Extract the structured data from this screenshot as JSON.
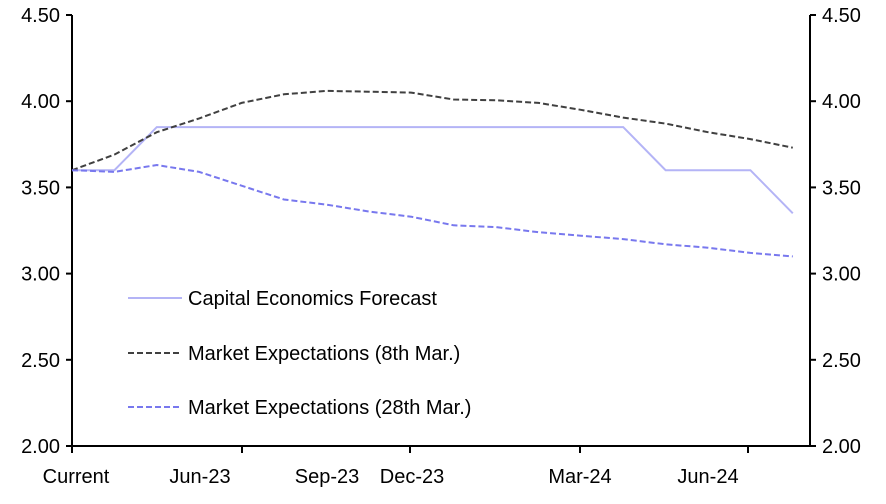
{
  "chart_data": {
    "type": "line",
    "title": "",
    "xlabel": "",
    "ylabel": "",
    "ylim": [
      2.0,
      4.5
    ],
    "y_ticks": [
      "2.00",
      "2.50",
      "3.00",
      "3.50",
      "4.00",
      "4.50"
    ],
    "y_tick_values": [
      2.0,
      2.5,
      3.0,
      3.5,
      4.0,
      4.5
    ],
    "x_tick_labels": [
      "Current",
      "Jun-23",
      "Sep-23",
      "Dec-23",
      "Mar-24",
      "Jun-24"
    ],
    "x_points": 18,
    "grid": false,
    "legend_position": "lower-left",
    "series": [
      {
        "name": "Capital Economics Forecast",
        "color": "#b4b4f6",
        "style": "solid",
        "values": [
          3.6,
          3.6,
          3.85,
          3.85,
          3.85,
          3.85,
          3.85,
          3.85,
          3.85,
          3.85,
          3.85,
          3.85,
          3.85,
          3.85,
          3.6,
          3.6,
          3.6,
          3.35
        ]
      },
      {
        "name": "Market Expectations (8th Mar.)",
        "color": "#404040",
        "style": "dashed",
        "values": [
          3.6,
          3.69,
          3.82,
          3.9,
          3.99,
          4.04,
          4.06,
          4.055,
          4.05,
          4.01,
          4.005,
          3.99,
          3.95,
          3.905,
          3.87,
          3.82,
          3.78,
          3.73
        ]
      },
      {
        "name": "Market Expectations (28th Mar.)",
        "color": "#7878ee",
        "style": "dashed",
        "values": [
          3.6,
          3.59,
          3.63,
          3.59,
          3.51,
          3.43,
          3.4,
          3.36,
          3.33,
          3.28,
          3.27,
          3.24,
          3.22,
          3.2,
          3.17,
          3.15,
          3.12,
          3.1
        ]
      }
    ]
  }
}
